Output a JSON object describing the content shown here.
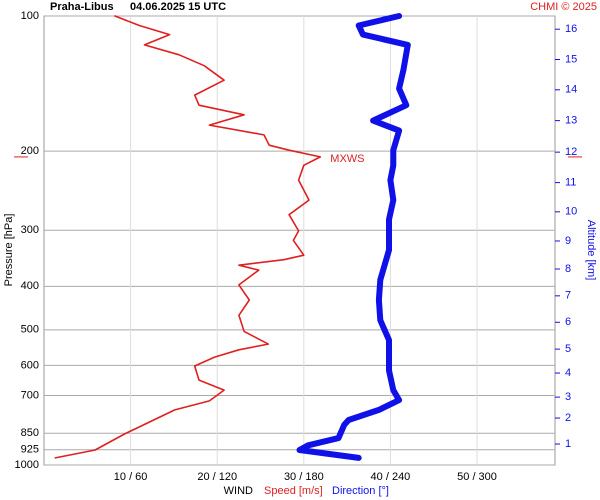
{
  "chart_data": {
    "type": "line",
    "title": "Praha-Libus",
    "subtitle": "04.06.2025 15 UTC",
    "credit": "CHMI © 2025",
    "y_label": "Pressure [hPa]",
    "y2_label": "Altitude [km]",
    "x_label": "WIND",
    "log_y": true,
    "grid": true,
    "ylim": [
      1000,
      100
    ],
    "yticks": [
      100,
      200,
      300,
      400,
      500,
      600,
      700,
      850,
      925,
      1000
    ],
    "xlim": [
      0,
      59
    ],
    "x2lim": [
      0,
      354
    ],
    "xticks": [
      {
        "value": 10,
        "label": "10 / 60"
      },
      {
        "value": 20,
        "label": "20 / 120"
      },
      {
        "value": 30,
        "label": "30 / 180"
      },
      {
        "value": 40,
        "label": "40 / 240"
      },
      {
        "value": 50,
        "label": "50 / 300"
      }
    ],
    "altitude_ticks": [
      {
        "km": 1,
        "pressure": 898
      },
      {
        "km": 2,
        "pressure": 786
      },
      {
        "km": 3,
        "pressure": 706
      },
      {
        "km": 4,
        "pressure": 624
      },
      {
        "km": 5,
        "pressure": 552
      },
      {
        "km": 6,
        "pressure": 481
      },
      {
        "km": 7,
        "pressure": 420
      },
      {
        "km": 8,
        "pressure": 366
      },
      {
        "km": 9,
        "pressure": 317
      },
      {
        "km": 10,
        "pressure": 273
      },
      {
        "km": 11,
        "pressure": 235
      },
      {
        "km": 12,
        "pressure": 201
      },
      {
        "km": 13,
        "pressure": 171
      },
      {
        "km": 14,
        "pressure": 146
      },
      {
        "km": 15,
        "pressure": 125
      },
      {
        "km": 16,
        "pressure": 107
      }
    ],
    "max_wind": {
      "label": "MXWS",
      "pressure": 206
    },
    "series": [
      {
        "name": "Speed [m/s]",
        "color": "#e02020",
        "axis": "x",
        "pressure": [
          964,
          926,
          853,
          754,
          720,
          681,
          647,
          602,
          575,
          554,
          538,
          504,
          464,
          429,
          397,
          368,
          359,
          349,
          341,
          316,
          301,
          277,
          257,
          232,
          215,
          206,
          199,
          194,
          184,
          175,
          166,
          158,
          150,
          139,
          129,
          122,
          116,
          110,
          105,
          100
        ],
        "values": [
          1.3,
          5.9,
          9.3,
          15.1,
          19.1,
          20.8,
          17.9,
          17.4,
          19.7,
          22.5,
          25.9,
          23.1,
          22.5,
          23.7,
          22.5,
          24.8,
          22.5,
          27.7,
          30.0,
          28.8,
          29.4,
          28.3,
          30.6,
          29.4,
          30.0,
          31.9,
          28.3,
          26.0,
          25.4,
          19.1,
          23.1,
          17.9,
          17.4,
          20.8,
          18.5,
          15.6,
          11.6,
          14.5,
          11.0,
          8.2
        ]
      },
      {
        "name": "Direction [°]",
        "color": "#1010e8",
        "axis": "x2",
        "pressure": [
          964,
          926,
          904,
          871,
          814,
          794,
          754,
          717,
          681,
          616,
          527,
          476,
          429,
          387,
          332,
          284,
          257,
          232,
          215,
          199,
          180,
          171,
          158,
          145,
          132,
          116,
          110,
          105,
          100
        ],
        "values": [
          218,
          177,
          183,
          204,
          208,
          211,
          232,
          246,
          242,
          239,
          239,
          233,
          232,
          233,
          239,
          239,
          242,
          240,
          242,
          242,
          246,
          228,
          251,
          246,
          249,
          252,
          221,
          218,
          246
        ]
      }
    ]
  }
}
